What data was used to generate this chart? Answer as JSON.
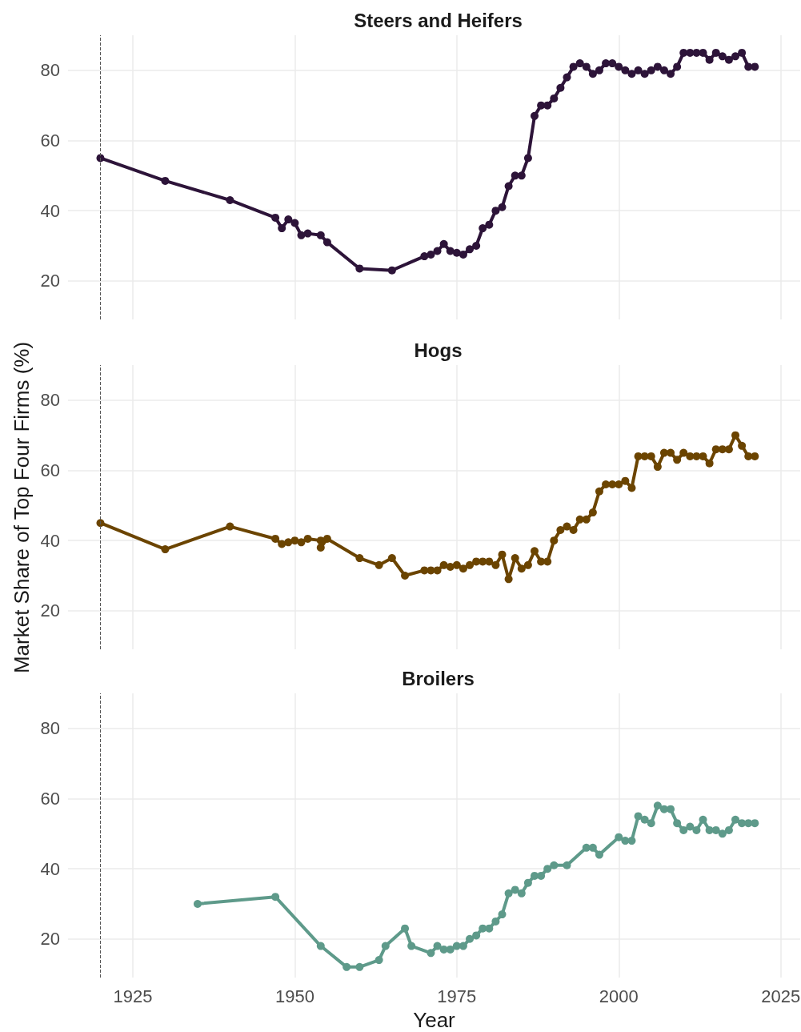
{
  "chart_data": [
    {
      "type": "line",
      "title": "Steers and Heifers",
      "xlim": [
        1915,
        2028
      ],
      "xticks": [
        1925,
        1950,
        1975,
        2000,
        2025
      ],
      "ylim": [
        9,
        90
      ],
      "yticks": [
        20,
        40,
        60,
        80
      ],
      "grid": true,
      "marker": "circle",
      "line_style": "solid",
      "tick_labels": "y",
      "ref_lines": [
        {
          "axis": "x",
          "value": 1920,
          "line_style": "dashed",
          "color": "#555555"
        }
      ],
      "series": [
        {
          "color": "#2d1439",
          "x": [
            1920,
            1930,
            1940,
            1947,
            1948,
            1949,
            1950,
            1951,
            1952,
            1954,
            1955,
            1960,
            1965,
            1970,
            1971,
            1972,
            1973,
            1974,
            1975,
            1976,
            1977,
            1978,
            1979,
            1980,
            1981,
            1982,
            1983,
            1984,
            1985,
            1986,
            1987,
            1988,
            1989,
            1990,
            1991,
            1992,
            1993,
            1994,
            1995,
            1996,
            1997,
            1998,
            1999,
            2000,
            2001,
            2002,
            2003,
            2004,
            2005,
            2006,
            2007,
            2008,
            2009,
            2010,
            2011,
            2012,
            2013,
            2014,
            2015,
            2016,
            2017,
            2018,
            2019,
            2020,
            2021
          ],
          "values": [
            55,
            48.5,
            43,
            38,
            35,
            37.5,
            36.5,
            33,
            33.5,
            33,
            31,
            23.5,
            23,
            27,
            27.5,
            28.5,
            30.5,
            28.5,
            28,
            27.5,
            29,
            30,
            35,
            36,
            40,
            41,
            47,
            50,
            50,
            55,
            67,
            70,
            70,
            72,
            75,
            78,
            81,
            82,
            81,
            79,
            80,
            82,
            82,
            81,
            80,
            79,
            80,
            79,
            80,
            81,
            80,
            79,
            81,
            85,
            85,
            85,
            85,
            83,
            85,
            84,
            83,
            84,
            85,
            81,
            81
          ]
        }
      ]
    },
    {
      "type": "line",
      "title": "Hogs",
      "ylabel": "Market Share of Top Four Firms (%)",
      "xlim": [
        1915,
        2028
      ],
      "xticks": [
        1925,
        1950,
        1975,
        2000,
        2025
      ],
      "ylim": [
        9,
        90
      ],
      "yticks": [
        20,
        40,
        60,
        80
      ],
      "grid": true,
      "marker": "circle",
      "line_style": "solid",
      "tick_labels": "y",
      "ref_lines": [
        {
          "axis": "x",
          "value": 1920,
          "line_style": "dashed",
          "color": "#555555"
        }
      ],
      "series": [
        {
          "color": "#6b4400",
          "x": [
            1920,
            1930,
            1940,
            1947,
            1948,
            1949,
            1950,
            1951,
            1952,
            1954,
            1954,
            1955,
            1960,
            1963,
            1965,
            1967,
            1970,
            1971,
            1972,
            1973,
            1974,
            1975,
            1976,
            1977,
            1978,
            1979,
            1980,
            1981,
            1982,
            1983,
            1984,
            1985,
            1986,
            1987,
            1988,
            1989,
            1990,
            1991,
            1992,
            1993,
            1994,
            1995,
            1996,
            1997,
            1998,
            1999,
            2000,
            2001,
            2002,
            2003,
            2004,
            2005,
            2006,
            2007,
            2008,
            2009,
            2010,
            2011,
            2012,
            2013,
            2014,
            2015,
            2016,
            2017,
            2018,
            2019,
            2020,
            2021
          ],
          "values": [
            45,
            37.5,
            44,
            40.5,
            39,
            39.5,
            40,
            39.5,
            40.5,
            40,
            38,
            40.5,
            35,
            33,
            35,
            30,
            31.5,
            31.5,
            31.5,
            33,
            32.5,
            33,
            32,
            33,
            34,
            34,
            34,
            33,
            36,
            29,
            35,
            32,
            33,
            37,
            34,
            34,
            40,
            43,
            44,
            43,
            46,
            46,
            48,
            54,
            56,
            56,
            56,
            57,
            55,
            64,
            64,
            64,
            61,
            65,
            65,
            63,
            65,
            64,
            64,
            64,
            62,
            66,
            66,
            66,
            70,
            67,
            64,
            64
          ]
        }
      ]
    },
    {
      "type": "line",
      "title": "Broilers",
      "xlabel": "Year",
      "xlim": [
        1915,
        2028
      ],
      "xticks": [
        1925,
        1950,
        1975,
        2000,
        2025
      ],
      "ylim": [
        9,
        90
      ],
      "yticks": [
        20,
        40,
        60,
        80
      ],
      "grid": true,
      "marker": "circle",
      "line_style": "solid",
      "ref_lines": [
        {
          "axis": "x",
          "value": 1920,
          "line_style": "dashed",
          "color": "#555555"
        }
      ],
      "series": [
        {
          "color": "#5e9a8a",
          "x": [
            1935,
            1947,
            1954,
            1958,
            1960,
            1963,
            1964,
            1967,
            1968,
            1971,
            1972,
            1973,
            1974,
            1975,
            1976,
            1977,
            1978,
            1979,
            1980,
            1981,
            1982,
            1983,
            1984,
            1985,
            1986,
            1987,
            1988,
            1989,
            1990,
            1992,
            1995,
            1996,
            1997,
            2000,
            2001,
            2002,
            2003,
            2004,
            2005,
            2006,
            2007,
            2008,
            2009,
            2010,
            2011,
            2012,
            2013,
            2014,
            2015,
            2016,
            2017,
            2018,
            2019,
            2020,
            2021
          ],
          "values": [
            30,
            32,
            18,
            12,
            12,
            14,
            18,
            23,
            18,
            16,
            18,
            17,
            17,
            18,
            18,
            20,
            21,
            23,
            23,
            25,
            27,
            33,
            34,
            33,
            36,
            38,
            38,
            40,
            41,
            41,
            46,
            46,
            44,
            49,
            48,
            48,
            55,
            54,
            53,
            58,
            57,
            57,
            53,
            51,
            52,
            51,
            54,
            51,
            51,
            50,
            51,
            54,
            53,
            53,
            53
          ]
        }
      ]
    }
  ]
}
